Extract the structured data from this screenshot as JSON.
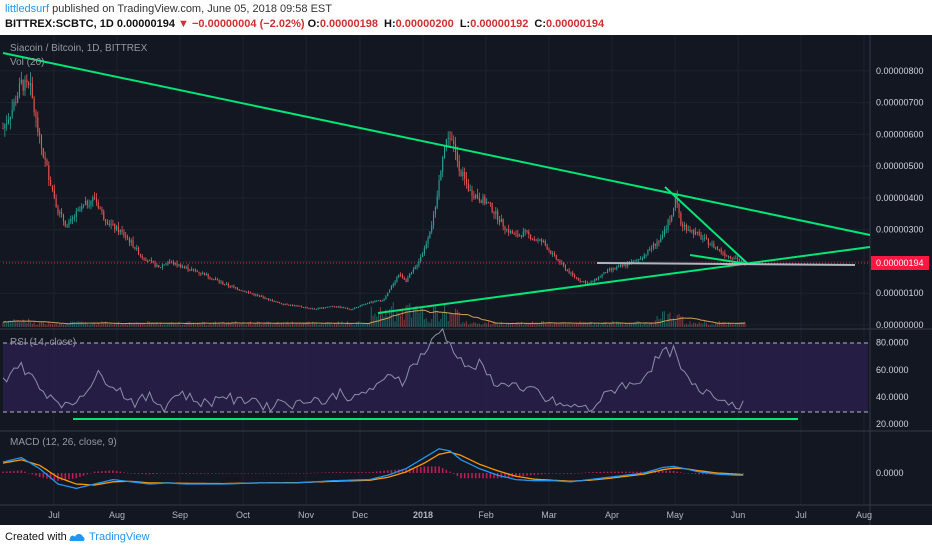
{
  "header": {
    "author": "littledsurf",
    "published_text": "published on TradingView.com, June 05, 2018 09:58 EST",
    "symbol": "BITTREX:SCBTC, 1D",
    "last_price": "0.00000194",
    "change_arrow": "▼",
    "change": "−0.00000004 (−2.02%)",
    "o_label": "O:",
    "o_value": "0.00000198",
    "h_label": "H:",
    "h_value": "0.00000200",
    "l_label": "L:",
    "l_value": "0.00000192",
    "c_label": "C:",
    "c_value": "0.00000194"
  },
  "main_pane": {
    "title": "Siacoin / Bitcoin, 1D, BITTREX",
    "vol_label": "Vol (20)",
    "price_badge": "0.00000194",
    "y_ticks": [
      "0.00000800",
      "0.00000700",
      "0.00000600",
      "0.00000500",
      "0.00000400",
      "0.00000300",
      "0.00000200",
      "0.00000100",
      "0.00000000"
    ]
  },
  "rsi_pane": {
    "label": "RSI (14, close)",
    "y_ticks": [
      "80.0000",
      "60.0000",
      "40.0000",
      "20.0000"
    ]
  },
  "macd_pane": {
    "label": "MACD (12, 26, close, 9)",
    "y_ticks": [
      "0.0000"
    ]
  },
  "x_axis": {
    "labels": [
      "Jul",
      "Aug",
      "Sep",
      "Oct",
      "Nov",
      "Dec",
      "2018",
      "Feb",
      "Mar",
      "Apr",
      "May",
      "Jun",
      "Jul",
      "Aug"
    ]
  },
  "footer": {
    "created": "Created with",
    "brand": "TradingView"
  },
  "colors": {
    "background": "#131722",
    "up": "#26a69a",
    "down": "#ef5350",
    "trendline": "#00e676",
    "rsi_line": "#8a8fa8",
    "macd_line": "#2196f3",
    "signal_line": "#ff9800",
    "hist": "#e91e63",
    "price_badge": "#ff1744"
  },
  "chart_data": {
    "type": "candlestick",
    "price_range": [
      0,
      8.5e-06
    ],
    "close_series": [
      [
        0,
        6.2e-06
      ],
      [
        5,
        6.8e-06
      ],
      [
        10,
        7.6e-06
      ],
      [
        15,
        7.4e-06
      ],
      [
        20,
        5.8e-06
      ],
      [
        25,
        4.7e-06
      ],
      [
        30,
        3.6e-06
      ],
      [
        35,
        3.1e-06
      ],
      [
        40,
        3.5e-06
      ],
      [
        45,
        3.8e-06
      ],
      [
        50,
        4e-06
      ],
      [
        55,
        3.4e-06
      ],
      [
        60,
        3.1e-06
      ],
      [
        65,
        2.9e-06
      ],
      [
        70,
        2.6e-06
      ],
      [
        75,
        2.2e-06
      ],
      [
        80,
        2e-06
      ],
      [
        85,
        1.8e-06
      ],
      [
        90,
        2e-06
      ],
      [
        95,
        1.9e-06
      ],
      [
        100,
        1.8e-06
      ],
      [
        110,
        1.6e-06
      ],
      [
        120,
        1.3e-06
      ],
      [
        130,
        1.1e-06
      ],
      [
        140,
        9e-07
      ],
      [
        150,
        7e-07
      ],
      [
        160,
        6e-07
      ],
      [
        170,
        5e-07
      ],
      [
        180,
        6e-07
      ],
      [
        190,
        5e-07
      ],
      [
        200,
        7e-07
      ],
      [
        208,
        8e-07
      ],
      [
        212,
        1.2e-06
      ],
      [
        216,
        1.6e-06
      ],
      [
        220,
        1.4e-06
      ],
      [
        225,
        1.8e-06
      ],
      [
        230,
        2.4e-06
      ],
      [
        233,
        3e-06
      ],
      [
        236,
        3.6e-06
      ],
      [
        240,
        5.4e-06
      ],
      [
        243,
        6e-06
      ],
      [
        246,
        5.6e-06
      ],
      [
        250,
        4.8e-06
      ],
      [
        255,
        4.2e-06
      ],
      [
        260,
        4e-06
      ],
      [
        265,
        3.8e-06
      ],
      [
        270,
        3.4e-06
      ],
      [
        275,
        3e-06
      ],
      [
        280,
        2.8e-06
      ],
      [
        285,
        2.9e-06
      ],
      [
        290,
        2.7e-06
      ],
      [
        295,
        2.6e-06
      ],
      [
        300,
        2.2e-06
      ],
      [
        305,
        1.9e-06
      ],
      [
        310,
        1.6e-06
      ],
      [
        315,
        1.4e-06
      ],
      [
        320,
        1.3e-06
      ],
      [
        325,
        1.5e-06
      ],
      [
        330,
        1.7e-06
      ],
      [
        335,
        1.8e-06
      ],
      [
        340,
        1.9e-06
      ],
      [
        345,
        2e-06
      ],
      [
        350,
        2.2e-06
      ],
      [
        355,
        2.5e-06
      ],
      [
        360,
        2.8e-06
      ],
      [
        365,
        3.5e-06
      ],
      [
        367,
        4e-06
      ],
      [
        370,
        3.2e-06
      ],
      [
        375,
        3e-06
      ],
      [
        380,
        2.8e-06
      ],
      [
        385,
        2.6e-06
      ],
      [
        390,
        2.4e-06
      ],
      [
        395,
        2.2e-06
      ],
      [
        400,
        2.1e-06
      ],
      [
        405,
        1.9e-06
      ]
    ],
    "rsi_series": [
      [
        0,
        52
      ],
      [
        8,
        64
      ],
      [
        14,
        58
      ],
      [
        20,
        46
      ],
      [
        28,
        40
      ],
      [
        36,
        32
      ],
      [
        44,
        44
      ],
      [
        52,
        56
      ],
      [
        60,
        50
      ],
      [
        66,
        42
      ],
      [
        72,
        36
      ],
      [
        80,
        40
      ],
      [
        88,
        33
      ],
      [
        96,
        44
      ],
      [
        104,
        38
      ],
      [
        112,
        35
      ],
      [
        120,
        42
      ],
      [
        128,
        36
      ],
      [
        136,
        40
      ],
      [
        144,
        32
      ],
      [
        152,
        38
      ],
      [
        160,
        34
      ],
      [
        168,
        40
      ],
      [
        176,
        36
      ],
      [
        184,
        44
      ],
      [
        192,
        38
      ],
      [
        200,
        46
      ],
      [
        206,
        48
      ],
      [
        212,
        58
      ],
      [
        218,
        52
      ],
      [
        224,
        64
      ],
      [
        228,
        70
      ],
      [
        232,
        76
      ],
      [
        236,
        84
      ],
      [
        240,
        90
      ],
      [
        244,
        78
      ],
      [
        248,
        72
      ],
      [
        254,
        60
      ],
      [
        260,
        64
      ],
      [
        266,
        54
      ],
      [
        272,
        48
      ],
      [
        278,
        52
      ],
      [
        284,
        42
      ],
      [
        290,
        46
      ],
      [
        296,
        38
      ],
      [
        302,
        36
      ],
      [
        308,
        32
      ],
      [
        314,
        34
      ],
      [
        320,
        30
      ],
      [
        326,
        38
      ],
      [
        332,
        44
      ],
      [
        338,
        50
      ],
      [
        344,
        48
      ],
      [
        350,
        56
      ],
      [
        356,
        66
      ],
      [
        360,
        72
      ],
      [
        366,
        74
      ],
      [
        370,
        60
      ],
      [
        374,
        52
      ],
      [
        380,
        44
      ],
      [
        386,
        46
      ],
      [
        392,
        38
      ],
      [
        398,
        36
      ],
      [
        404,
        34
      ]
    ],
    "rsi_range": [
      15,
      90
    ],
    "macd_series": [
      [
        0,
        0.5
      ],
      [
        10,
        0.7
      ],
      [
        20,
        0.2
      ],
      [
        30,
        -0.5
      ],
      [
        40,
        -0.7
      ],
      [
        50,
        -0.5
      ],
      [
        60,
        -0.3
      ],
      [
        70,
        -0.4
      ],
      [
        80,
        -0.5
      ],
      [
        90,
        -0.45
      ],
      [
        100,
        -0.5
      ],
      [
        120,
        -0.5
      ],
      [
        140,
        -0.45
      ],
      [
        160,
        -0.45
      ],
      [
        180,
        -0.35
      ],
      [
        200,
        -0.3
      ],
      [
        210,
        -0.1
      ],
      [
        220,
        0.2
      ],
      [
        230,
        0.7
      ],
      [
        238,
        1.1
      ],
      [
        244,
        1.0
      ],
      [
        250,
        0.6
      ],
      [
        260,
        0.2
      ],
      [
        270,
        -0.1
      ],
      [
        280,
        -0.3
      ],
      [
        290,
        -0.35
      ],
      [
        300,
        -0.35
      ],
      [
        310,
        -0.4
      ],
      [
        320,
        -0.3
      ],
      [
        330,
        -0.2
      ],
      [
        340,
        -0.1
      ],
      [
        350,
        0.0
      ],
      [
        360,
        0.25
      ],
      [
        366,
        0.3
      ],
      [
        372,
        0.2
      ],
      [
        380,
        0.05
      ],
      [
        390,
        -0.05
      ],
      [
        400,
        -0.1
      ],
      [
        405,
        -0.1
      ]
    ],
    "signal_series": [
      [
        0,
        0.45
      ],
      [
        10,
        0.6
      ],
      [
        20,
        0.35
      ],
      [
        30,
        -0.2
      ],
      [
        40,
        -0.5
      ],
      [
        50,
        -0.55
      ],
      [
        60,
        -0.4
      ],
      [
        70,
        -0.38
      ],
      [
        80,
        -0.45
      ],
      [
        90,
        -0.45
      ],
      [
        100,
        -0.47
      ],
      [
        120,
        -0.48
      ],
      [
        140,
        -0.45
      ],
      [
        160,
        -0.44
      ],
      [
        180,
        -0.38
      ],
      [
        200,
        -0.33
      ],
      [
        210,
        -0.2
      ],
      [
        220,
        0.05
      ],
      [
        230,
        0.45
      ],
      [
        238,
        0.85
      ],
      [
        244,
        0.95
      ],
      [
        250,
        0.8
      ],
      [
        260,
        0.4
      ],
      [
        270,
        0.1
      ],
      [
        280,
        -0.15
      ],
      [
        290,
        -0.28
      ],
      [
        300,
        -0.33
      ],
      [
        310,
        -0.37
      ],
      [
        320,
        -0.33
      ],
      [
        330,
        -0.25
      ],
      [
        340,
        -0.15
      ],
      [
        350,
        -0.05
      ],
      [
        360,
        0.15
      ],
      [
        366,
        0.22
      ],
      [
        372,
        0.2
      ],
      [
        380,
        0.1
      ],
      [
        390,
        0.0
      ],
      [
        400,
        -0.05
      ],
      [
        405,
        -0.08
      ]
    ],
    "macd_range": [
      -1,
      1.3
    ],
    "x_label_positions": [
      0.06,
      0.13,
      0.2,
      0.27,
      0.34,
      0.4,
      0.47,
      0.54,
      0.61,
      0.68,
      0.75,
      0.82,
      0.89,
      0.96
    ]
  }
}
